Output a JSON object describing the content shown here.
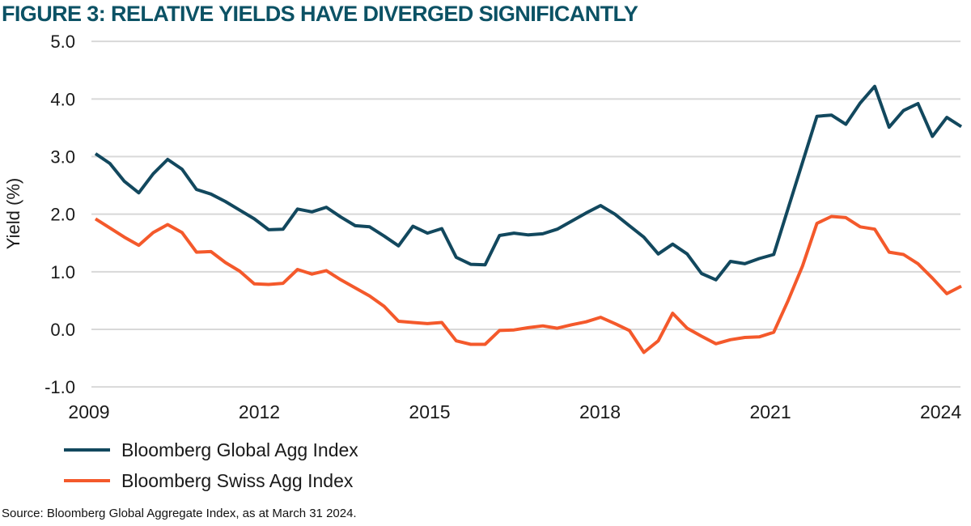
{
  "chart_data": {
    "type": "line",
    "title": "FIGURE 3: RELATIVE YIELDS HAVE DIVERGED SIGNIFICANTLY",
    "ylabel": "Yield (%)",
    "ylim": [
      -1.0,
      5.0
    ],
    "ytick_labels": [
      "5.0",
      "4.0",
      "3.0",
      "2.0",
      "1.0",
      "0.0",
      "-1.0"
    ],
    "ytick_values": [
      5.0,
      4.0,
      3.0,
      2.0,
      1.0,
      0.0,
      -1.0
    ],
    "xtick_years": [
      2009,
      2012,
      2015,
      2018,
      2021,
      2024
    ],
    "x_start_year": 2009,
    "x_end_year": 2024.25,
    "points_per_year": 4,
    "grid": "horizontal-only",
    "grid_color": "#D8D8D8",
    "text_color": "#1a1a1a",
    "legend_position": "below",
    "series": [
      {
        "name": "Bloomberg Global Agg Index",
        "color": "#12485E",
        "values": [
          3.05,
          2.88,
          2.57,
          2.37,
          2.7,
          2.95,
          2.78,
          2.43,
          2.35,
          2.22,
          2.07,
          1.92,
          1.73,
          1.74,
          2.09,
          2.04,
          2.12,
          1.95,
          1.8,
          1.78,
          1.62,
          1.45,
          1.79,
          1.67,
          1.75,
          1.25,
          1.13,
          1.12,
          1.63,
          1.67,
          1.64,
          1.66,
          1.74,
          1.88,
          2.02,
          2.15,
          2.0,
          1.8,
          1.6,
          1.31,
          1.48,
          1.31,
          0.97,
          0.86,
          1.18,
          1.14,
          1.23,
          1.3,
          2.1,
          2.9,
          3.7,
          3.72,
          3.56,
          3.93,
          4.22,
          3.51,
          3.8,
          3.92,
          3.35,
          3.68,
          3.52
        ]
      },
      {
        "name": "Bloomberg Swiss Agg Index",
        "color": "#F4592B",
        "values": [
          1.92,
          1.76,
          1.6,
          1.46,
          1.68,
          1.82,
          1.68,
          1.34,
          1.35,
          1.16,
          1.01,
          0.79,
          0.78,
          0.8,
          1.04,
          0.96,
          1.02,
          0.86,
          0.72,
          0.58,
          0.4,
          0.14,
          0.12,
          0.1,
          0.12,
          -0.2,
          -0.26,
          -0.26,
          -0.02,
          -0.01,
          0.03,
          0.06,
          0.02,
          0.08,
          0.13,
          0.21,
          0.1,
          -0.02,
          -0.4,
          -0.2,
          0.28,
          0.02,
          -0.12,
          -0.25,
          -0.18,
          -0.14,
          -0.13,
          -0.05,
          0.5,
          1.1,
          1.84,
          1.96,
          1.94,
          1.78,
          1.74,
          1.34,
          1.3,
          1.14,
          0.89,
          0.62,
          0.75
        ]
      }
    ],
    "source": "Source: Bloomberg Global Aggregate Index, as at March 31 2024."
  }
}
